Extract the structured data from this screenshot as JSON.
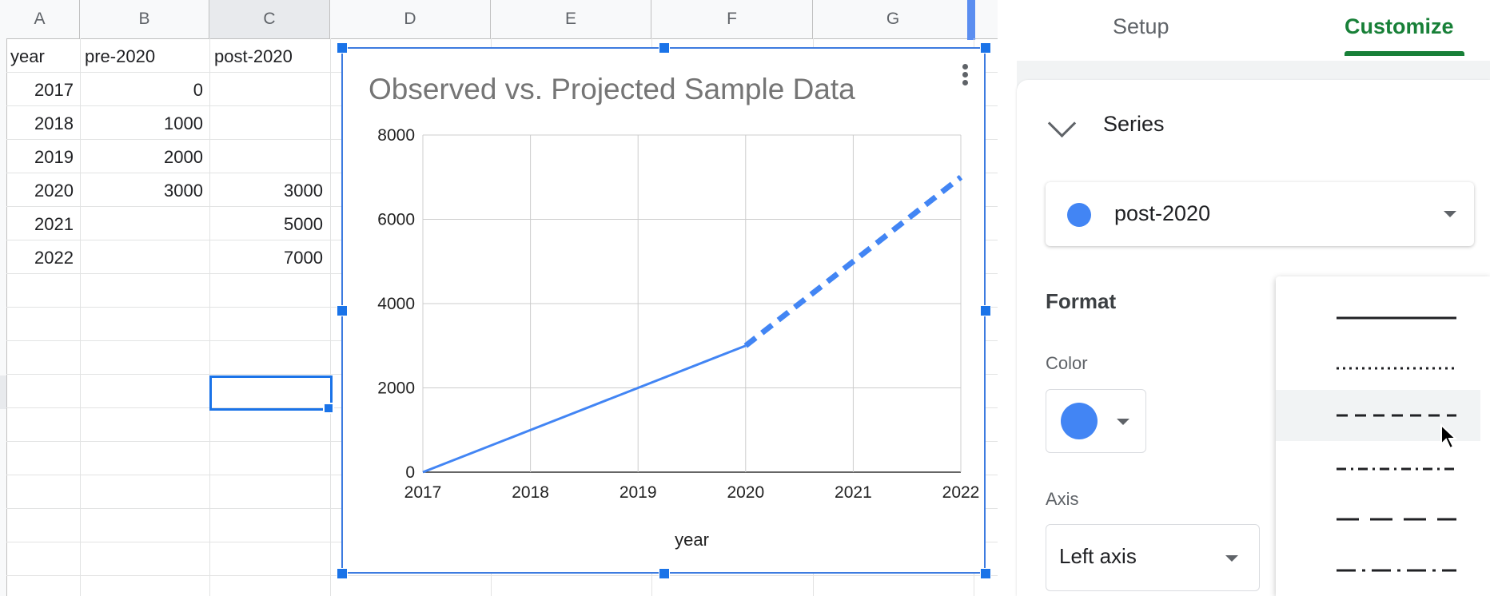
{
  "sheet": {
    "columns": [
      "A",
      "B",
      "C",
      "D",
      "E",
      "F",
      "G"
    ],
    "headers": [
      "year",
      "pre-2020",
      "post-2020"
    ],
    "rows": [
      {
        "year": "2017",
        "pre": "0",
        "post": ""
      },
      {
        "year": "2018",
        "pre": "1000",
        "post": ""
      },
      {
        "year": "2019",
        "pre": "2000",
        "post": ""
      },
      {
        "year": "2020",
        "pre": "3000",
        "post": "3000"
      },
      {
        "year": "2021",
        "pre": "",
        "post": "5000"
      },
      {
        "year": "2022",
        "pre": "",
        "post": "7000"
      }
    ]
  },
  "chart_data": {
    "type": "line",
    "title": "Observed vs. Projected Sample Data",
    "xlabel": "year",
    "ylabel": "",
    "x": [
      2017,
      2018,
      2019,
      2020,
      2021,
      2022
    ],
    "xticks": [
      "2017",
      "2018",
      "2019",
      "2020",
      "2021",
      "2022"
    ],
    "yticks": [
      "0",
      "2000",
      "4000",
      "6000",
      "8000"
    ],
    "ylim": [
      0,
      8000
    ],
    "grid": true,
    "series": [
      {
        "name": "pre-2020",
        "values": [
          0,
          1000,
          2000,
          3000,
          null,
          null
        ],
        "color": "#4285f4",
        "style": "solid"
      },
      {
        "name": "post-2020",
        "values": [
          null,
          null,
          null,
          3000,
          5000,
          7000
        ],
        "color": "#4285f4",
        "style": "dashed"
      }
    ]
  },
  "panel": {
    "tabs": {
      "setup": "Setup",
      "customize": "Customize"
    },
    "series_section": "Series",
    "selected_series": "post-2020",
    "format_title": "Format",
    "color_label": "Color",
    "color_value": "#4285f4",
    "axis_label": "Axis",
    "axis_value": "Left axis"
  },
  "dash_menu": {
    "options": [
      "solid",
      "dotted",
      "dashed",
      "dash-dot",
      "long-dash",
      "long-dash-dot"
    ],
    "hovered": "dashed"
  },
  "colors": {
    "accent": "#1a73e8",
    "series": "#4285f4",
    "customize_green": "#188038"
  }
}
